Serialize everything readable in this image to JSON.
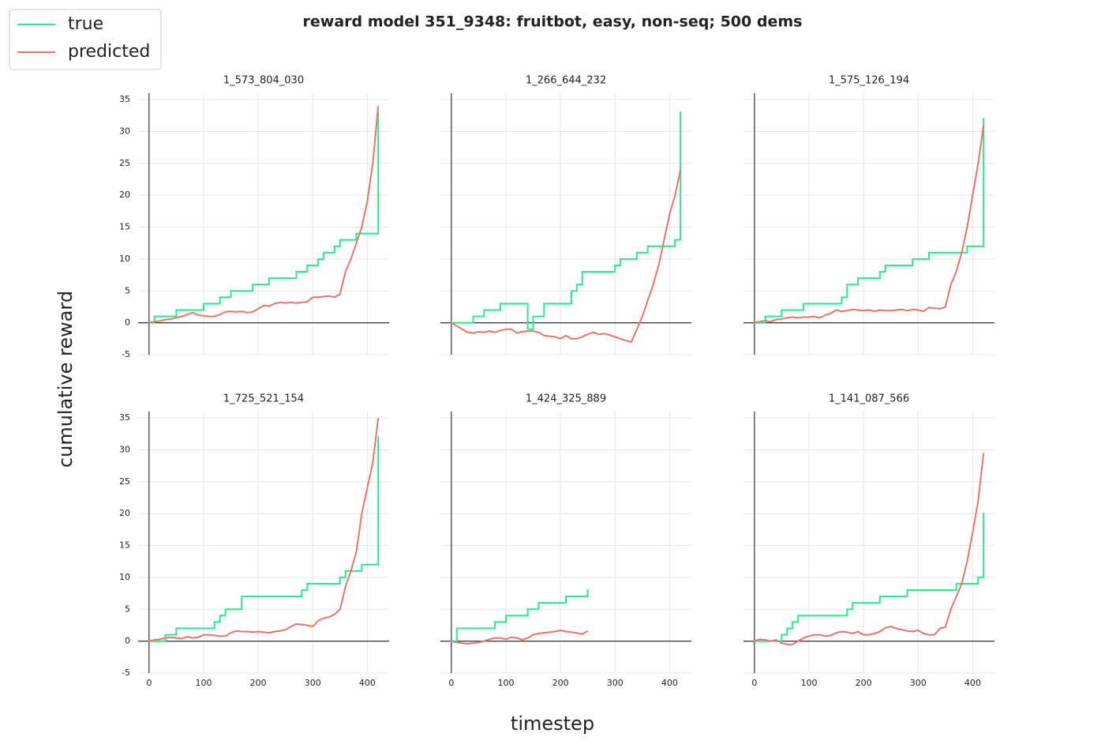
{
  "figure": {
    "title": "reward model 351_9348: fruitbot, easy, non-seq; 500 dems",
    "xlabel": "timestep",
    "ylabel": "cumulative reward"
  },
  "chart_data": [
    {
      "type": "line",
      "title": "1_573_804_030",
      "x": [
        0,
        10,
        20,
        30,
        40,
        50,
        60,
        70,
        80,
        90,
        100,
        110,
        120,
        130,
        140,
        150,
        160,
        170,
        180,
        190,
        200,
        210,
        220,
        230,
        240,
        250,
        260,
        270,
        280,
        290,
        300,
        310,
        320,
        330,
        340,
        350,
        360,
        370,
        380,
        390,
        400,
        410,
        420
      ],
      "series": [
        {
          "name": "true",
          "color": "#2be88c",
          "drawstyle": "steps-post",
          "values": [
            0,
            1,
            1,
            1,
            1,
            2,
            2,
            2,
            2,
            2,
            3,
            3,
            3,
            4,
            4,
            5,
            5,
            5,
            5,
            6,
            6,
            6,
            7,
            7,
            7,
            7,
            7,
            8,
            8,
            9,
            9,
            10,
            11,
            11,
            12,
            13,
            13,
            13,
            14,
            14,
            14,
            14,
            33
          ]
        },
        {
          "name": "predicted",
          "color": "#e8756a",
          "values": [
            0,
            0.2,
            0.3,
            0.5,
            0.6,
            0.8,
            1,
            1.3,
            1.6,
            1.2,
            1.1,
            1.0,
            1,
            1.3,
            1.7,
            1.8,
            1.7,
            1.8,
            1.6,
            1.7,
            2.2,
            2.7,
            2.6,
            3.0,
            3.2,
            3.1,
            3.2,
            3.1,
            3.2,
            3.3,
            4.0,
            4.0,
            4.1,
            4.2,
            4.0,
            4.5,
            8,
            10,
            12.5,
            15,
            19,
            25,
            34
          ]
        }
      ],
      "xlim": [
        -20,
        440
      ],
      "ylim": [
        -5,
        36
      ],
      "xticks": [
        0,
        100,
        200,
        300,
        400
      ],
      "yticks": [
        -5,
        0,
        5,
        10,
        15,
        20,
        25,
        30,
        35
      ],
      "grid": true
    },
    {
      "type": "line",
      "title": "1_266_644_232",
      "x": [
        0,
        10,
        20,
        30,
        40,
        50,
        60,
        70,
        80,
        90,
        100,
        110,
        120,
        130,
        140,
        150,
        160,
        170,
        180,
        190,
        200,
        210,
        220,
        230,
        240,
        250,
        260,
        270,
        280,
        290,
        300,
        310,
        320,
        330,
        340,
        350,
        360,
        370,
        380,
        390,
        400,
        410,
        420
      ],
      "series": [
        {
          "name": "true",
          "color": "#2be88c",
          "drawstyle": "steps-post",
          "values": [
            0,
            0,
            0,
            0,
            1,
            1,
            2,
            2,
            2,
            3,
            3,
            3,
            3,
            3,
            -1,
            1,
            1,
            3,
            3,
            3,
            3,
            3,
            5,
            6,
            8,
            8,
            8,
            8,
            8,
            8,
            9,
            10,
            10,
            10,
            11,
            11,
            12,
            12,
            12,
            12,
            12,
            13,
            33
          ]
        },
        {
          "name": "predicted",
          "color": "#e8756a",
          "values": [
            0,
            -0.5,
            -1,
            -1.5,
            -1.6,
            -1.4,
            -1.5,
            -1.3,
            -1.5,
            -1.2,
            -1.0,
            -1,
            -1.6,
            -1.4,
            -1.3,
            -1.3,
            -1.5,
            -2,
            -2.1,
            -2.2,
            -2.5,
            -2,
            -2.5,
            -2.5,
            -2.2,
            -1.8,
            -1.5,
            -1.8,
            -1.7,
            -1.9,
            -2.2,
            -2.5,
            -2.8,
            -3,
            -1,
            1,
            3.5,
            6,
            9,
            13,
            17,
            20,
            24
          ]
        }
      ],
      "xlim": [
        -20,
        440
      ],
      "ylim": [
        -5,
        36
      ],
      "xticks": [
        0,
        100,
        200,
        300,
        400
      ],
      "yticks": [
        -5,
        0,
        5,
        10,
        15,
        20,
        25,
        30,
        35
      ],
      "grid": true
    },
    {
      "type": "line",
      "title": "1_575_126_194",
      "x": [
        0,
        10,
        20,
        30,
        40,
        50,
        60,
        70,
        80,
        90,
        100,
        110,
        120,
        130,
        140,
        150,
        160,
        170,
        180,
        190,
        200,
        210,
        220,
        230,
        240,
        250,
        260,
        270,
        280,
        290,
        300,
        310,
        320,
        330,
        340,
        350,
        360,
        370,
        380,
        390,
        400,
        410,
        420
      ],
      "series": [
        {
          "name": "true",
          "color": "#2be88c",
          "drawstyle": "steps-post",
          "values": [
            0,
            0,
            1,
            1,
            1,
            2,
            2,
            2,
            2,
            3,
            3,
            3,
            3,
            3,
            3,
            3,
            4,
            6,
            6,
            7,
            7,
            7,
            7,
            8,
            9,
            9,
            9,
            9,
            9,
            10,
            10,
            10,
            11,
            11,
            11,
            11,
            11,
            11,
            11,
            12,
            12,
            12,
            32
          ]
        },
        {
          "name": "predicted",
          "color": "#e8756a",
          "values": [
            0,
            0.2,
            0.3,
            0.2,
            0.5,
            0.6,
            0.8,
            0.9,
            0.8,
            0.9,
            0.9,
            1.0,
            0.8,
            1.2,
            1.5,
            2,
            1.8,
            1.9,
            2.1,
            2.0,
            1.9,
            2.0,
            1.8,
            2.0,
            1.9,
            1.9,
            2.0,
            2.1,
            1.9,
            2.1,
            2.0,
            1.8,
            2.4,
            2.3,
            2.2,
            2.5,
            6,
            8,
            11,
            15,
            20,
            25,
            31
          ]
        }
      ],
      "xlim": [
        -20,
        440
      ],
      "ylim": [
        -5,
        36
      ],
      "xticks": [
        0,
        100,
        200,
        300,
        400
      ],
      "yticks": [
        -5,
        0,
        5,
        10,
        15,
        20,
        25,
        30,
        35
      ],
      "grid": true
    },
    {
      "type": "line",
      "title": "1_725_521_154",
      "x": [
        0,
        10,
        20,
        30,
        40,
        50,
        60,
        70,
        80,
        90,
        100,
        110,
        120,
        130,
        140,
        150,
        160,
        170,
        180,
        190,
        200,
        210,
        220,
        230,
        240,
        250,
        260,
        270,
        280,
        290,
        300,
        310,
        320,
        330,
        340,
        350,
        360,
        370,
        380,
        390,
        400,
        410,
        420
      ],
      "series": [
        {
          "name": "true",
          "color": "#2be88c",
          "drawstyle": "steps-post",
          "values": [
            0,
            0,
            0,
            1,
            1,
            2,
            2,
            2,
            2,
            2,
            2,
            2,
            3,
            4,
            5,
            5,
            5,
            7,
            7,
            7,
            7,
            7,
            7,
            7,
            7,
            7,
            7,
            7,
            8,
            9,
            9,
            9,
            9,
            9,
            9,
            10,
            11,
            11,
            11,
            12,
            12,
            12,
            32
          ]
        },
        {
          "name": "predicted",
          "color": "#e8756a",
          "values": [
            0,
            0.2,
            0.3,
            0.5,
            0.6,
            0.5,
            0.4,
            0.7,
            0.5,
            0.6,
            1,
            1,
            0.9,
            0.8,
            0.8,
            1.3,
            1.6,
            1.5,
            1.5,
            1.4,
            1.5,
            1.4,
            1.3,
            1.5,
            1.6,
            1.8,
            2.3,
            2.7,
            2.6,
            2.5,
            2.3,
            3.2,
            3.6,
            3.8,
            4.2,
            5,
            8.5,
            11,
            14,
            20,
            24,
            28,
            35
          ]
        }
      ],
      "xlim": [
        -20,
        440
      ],
      "ylim": [
        -5,
        36
      ],
      "xticks": [
        0,
        100,
        200,
        300,
        400
      ],
      "yticks": [
        -5,
        0,
        5,
        10,
        15,
        20,
        25,
        30,
        35
      ],
      "grid": true
    },
    {
      "type": "line",
      "title": "1_424_325_889",
      "x": [
        0,
        10,
        20,
        30,
        40,
        50,
        60,
        70,
        80,
        90,
        100,
        110,
        120,
        130,
        140,
        150,
        160,
        170,
        180,
        190,
        200,
        210,
        220,
        230,
        240,
        250,
        260,
        270,
        280,
        290,
        300,
        310,
        320,
        330,
        340,
        350,
        360,
        370,
        380,
        390,
        400,
        410,
        420
      ],
      "series": [
        {
          "name": "true",
          "color": "#2be88c",
          "drawstyle": "steps-post",
          "values": [
            0,
            2,
            2,
            2,
            2,
            2,
            2,
            2,
            3,
            3,
            4,
            4,
            4,
            4,
            5,
            5,
            6,
            6,
            6,
            6,
            6,
            7,
            7,
            7,
            7,
            8,
            null,
            null,
            null,
            null,
            null,
            null,
            null,
            null,
            null,
            null,
            null,
            null,
            null,
            null,
            null,
            null,
            null
          ]
        },
        {
          "name": "predicted",
          "color": "#e8756a",
          "values": [
            0,
            -0.2,
            -0.3,
            -0.4,
            -0.3,
            -0.2,
            0,
            0.3,
            0.5,
            0.5,
            0.3,
            0.6,
            0.5,
            0.2,
            0.5,
            1,
            1.2,
            1.3,
            1.4,
            1.5,
            1.7,
            1.5,
            1.4,
            1.3,
            1.1,
            1.6,
            null,
            null,
            null,
            null,
            null,
            null,
            null,
            null,
            null,
            null,
            null,
            null,
            null,
            null,
            null,
            null,
            null
          ]
        }
      ],
      "xlim": [
        -20,
        440
      ],
      "ylim": [
        -5,
        36
      ],
      "xticks": [
        0,
        100,
        200,
        300,
        400
      ],
      "yticks": [
        -5,
        0,
        5,
        10,
        15,
        20,
        25,
        30,
        35
      ],
      "grid": true
    },
    {
      "type": "line",
      "title": "1_141_087_566",
      "x": [
        0,
        10,
        20,
        30,
        40,
        50,
        60,
        70,
        80,
        90,
        100,
        110,
        120,
        130,
        140,
        150,
        160,
        170,
        180,
        190,
        200,
        210,
        220,
        230,
        240,
        250,
        260,
        270,
        280,
        290,
        300,
        310,
        320,
        330,
        340,
        350,
        360,
        370,
        380,
        390,
        400,
        410,
        420
      ],
      "series": [
        {
          "name": "true",
          "color": "#2be88c",
          "drawstyle": "steps-post",
          "values": [
            0,
            0,
            0,
            0,
            0,
            1,
            2,
            3,
            4,
            4,
            4,
            4,
            4,
            4,
            4,
            4,
            4,
            5,
            6,
            6,
            6,
            6,
            6,
            7,
            7,
            7,
            7,
            7,
            8,
            8,
            8,
            8,
            8,
            8,
            8,
            8,
            8,
            9,
            9,
            9,
            9,
            10,
            20
          ]
        },
        {
          "name": "predicted",
          "color": "#e8756a",
          "values": [
            0,
            0.3,
            0.2,
            0,
            0.2,
            -0.3,
            -0.5,
            -0.5,
            0,
            0.5,
            0.8,
            1,
            1,
            0.8,
            0.9,
            1.3,
            1.5,
            1.4,
            1.2,
            1.5,
            1,
            1,
            1.2,
            1.5,
            2.1,
            2.3,
            2,
            1.8,
            1.6,
            1.5,
            1.7,
            1.2,
            1,
            1,
            2,
            2.2,
            5,
            7,
            9,
            12.5,
            17,
            22,
            29.5
          ]
        }
      ],
      "xlim": [
        -20,
        440
      ],
      "ylim": [
        -5,
        36
      ],
      "xticks": [
        0,
        100,
        200,
        300,
        400
      ],
      "yticks": [
        -5,
        0,
        5,
        10,
        15,
        20,
        25,
        30,
        35
      ],
      "grid": true
    }
  ]
}
